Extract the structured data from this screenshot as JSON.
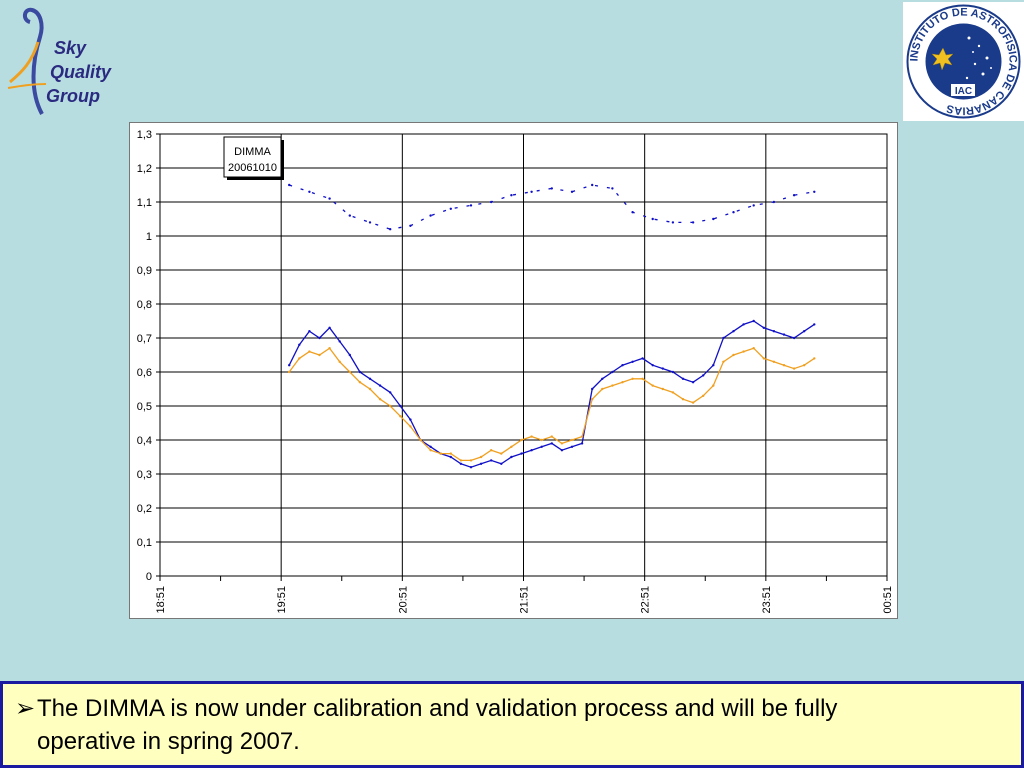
{
  "logos": {
    "left": {
      "words": [
        "Sky",
        "Quality",
        "Group"
      ],
      "icon": "sky-quality-group-logo"
    },
    "right": {
      "ring_text": "INSTITUTO DE ASTROFISICA DE CANARIAS",
      "center_text": "IAC",
      "icon": "iac-seal"
    }
  },
  "note": {
    "bullet": "➢",
    "line1": "The DIMMA is now under calibration and validation process and will be fully",
    "line2": "operative in spring 2007."
  },
  "chart_data": {
    "type": "line",
    "annotation": [
      "DIMMA",
      "20061010"
    ],
    "ylim": [
      0,
      1.3
    ],
    "yticks": [
      "0",
      "0,1",
      "0,2",
      "0,3",
      "0,4",
      "0,5",
      "0,6",
      "0,7",
      "0,8",
      "0,9",
      "1",
      "1,1",
      "1,2",
      "1,3"
    ],
    "xlim": [
      "18:51",
      "00:51"
    ],
    "xticks": [
      "18:51",
      "19:51",
      "20:51",
      "21:51",
      "22:51",
      "23:51",
      "00:51"
    ],
    "grid": true,
    "legend": "none",
    "series": [
      {
        "color": "#1010c8",
        "style": "solid",
        "x": [
          "19:55",
          "20:00",
          "20:05",
          "20:10",
          "20:15",
          "20:20",
          "20:25",
          "20:30",
          "20:35",
          "20:40",
          "20:45",
          "20:50",
          "20:55",
          "21:00",
          "21:05",
          "21:10",
          "21:15",
          "21:20",
          "21:25",
          "21:30",
          "21:35",
          "21:40",
          "21:45",
          "21:50",
          "21:55",
          "22:00",
          "22:05",
          "22:10",
          "22:15",
          "22:20",
          "22:25",
          "22:30",
          "22:35",
          "22:40",
          "22:45",
          "22:50",
          "22:55",
          "23:00",
          "23:05",
          "23:10",
          "23:15",
          "23:20",
          "23:25",
          "23:30",
          "23:35",
          "23:40",
          "23:45",
          "23:50",
          "23:55",
          "00:00",
          "00:05",
          "00:10",
          "00:15"
        ],
        "y": [
          0.62,
          0.68,
          0.72,
          0.7,
          0.73,
          0.69,
          0.65,
          0.6,
          0.58,
          0.56,
          0.54,
          0.5,
          0.46,
          0.4,
          0.38,
          0.36,
          0.35,
          0.33,
          0.32,
          0.33,
          0.34,
          0.33,
          0.35,
          0.36,
          0.37,
          0.38,
          0.39,
          0.37,
          0.38,
          0.39,
          0.55,
          0.58,
          0.6,
          0.62,
          0.63,
          0.64,
          0.62,
          0.61,
          0.6,
          0.58,
          0.57,
          0.59,
          0.62,
          0.7,
          0.72,
          0.74,
          0.75,
          0.73,
          0.72,
          0.71,
          0.7,
          0.72,
          0.74
        ]
      },
      {
        "color": "#f0a020",
        "style": "solid",
        "x": [
          "19:55",
          "20:00",
          "20:05",
          "20:10",
          "20:15",
          "20:20",
          "20:25",
          "20:30",
          "20:35",
          "20:40",
          "20:45",
          "20:50",
          "20:55",
          "21:00",
          "21:05",
          "21:10",
          "21:15",
          "21:20",
          "21:25",
          "21:30",
          "21:35",
          "21:40",
          "21:45",
          "21:50",
          "21:55",
          "22:00",
          "22:05",
          "22:10",
          "22:15",
          "22:20",
          "22:25",
          "22:30",
          "22:35",
          "22:40",
          "22:45",
          "22:50",
          "22:55",
          "23:00",
          "23:05",
          "23:10",
          "23:15",
          "23:20",
          "23:25",
          "23:30",
          "23:35",
          "23:40",
          "23:45",
          "23:50",
          "23:55",
          "00:00",
          "00:05",
          "00:10",
          "00:15"
        ],
        "y": [
          0.6,
          0.64,
          0.66,
          0.65,
          0.67,
          0.63,
          0.6,
          0.57,
          0.55,
          0.52,
          0.5,
          0.47,
          0.44,
          0.4,
          0.37,
          0.36,
          0.36,
          0.34,
          0.34,
          0.35,
          0.37,
          0.36,
          0.38,
          0.4,
          0.41,
          0.4,
          0.41,
          0.39,
          0.4,
          0.41,
          0.52,
          0.55,
          0.56,
          0.57,
          0.58,
          0.58,
          0.56,
          0.55,
          0.54,
          0.52,
          0.51,
          0.53,
          0.56,
          0.63,
          0.65,
          0.66,
          0.67,
          0.64,
          0.63,
          0.62,
          0.61,
          0.62,
          0.64
        ]
      },
      {
        "color": "#1010c8",
        "style": "dashed",
        "x": [
          "19:55",
          "20:05",
          "20:15",
          "20:25",
          "20:35",
          "20:45",
          "20:55",
          "21:05",
          "21:15",
          "21:25",
          "21:35",
          "21:45",
          "21:55",
          "22:05",
          "22:15",
          "22:25",
          "22:35",
          "22:45",
          "22:55",
          "23:05",
          "23:15",
          "23:25",
          "23:35",
          "23:45",
          "23:55",
          "00:05",
          "00:15"
        ],
        "y": [
          1.15,
          1.13,
          1.11,
          1.06,
          1.04,
          1.02,
          1.03,
          1.06,
          1.08,
          1.09,
          1.1,
          1.12,
          1.13,
          1.14,
          1.13,
          1.15,
          1.14,
          1.07,
          1.05,
          1.04,
          1.04,
          1.05,
          1.07,
          1.09,
          1.1,
          1.12,
          1.13
        ]
      }
    ]
  }
}
